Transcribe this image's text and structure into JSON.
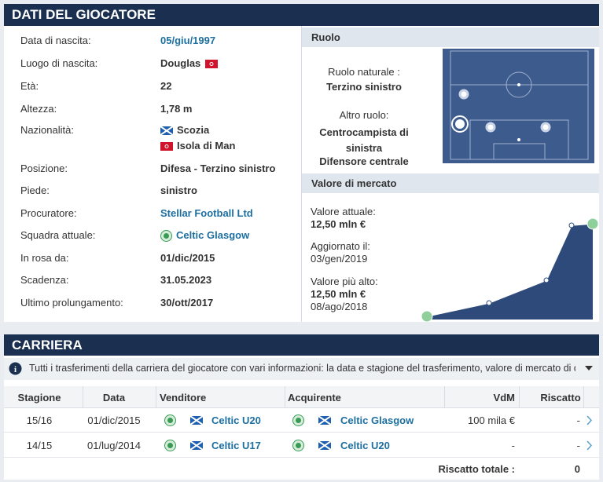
{
  "header": {
    "title": "DATI DEL GIOCATORE"
  },
  "profile": {
    "rows": [
      {
        "label": "Data di nascita:",
        "value": "05/giu/1997"
      },
      {
        "label": "Luogo di nascita:",
        "value": "Douglas"
      },
      {
        "label": "Età:",
        "value": "22"
      },
      {
        "label": "Altezza:",
        "value": "1,78 m"
      },
      {
        "label": "Nazionalità:",
        "value": [
          "Scozia",
          "Isola di Man"
        ]
      },
      {
        "label": "Posizione:",
        "value": "Difesa - Terzino sinistro"
      },
      {
        "label": "Piede:",
        "value": "sinistro"
      },
      {
        "label": "Procuratore:",
        "value": "Stellar Football Ltd"
      },
      {
        "label": "Squadra attuale:",
        "value": "Celtic Glasgow"
      },
      {
        "label": "In rosa da:",
        "value": "01/dic/2015"
      },
      {
        "label": "Scadenza:",
        "value": "31.05.2023"
      },
      {
        "label": "Ultimo prolungamento:",
        "value": "30/ott/2017"
      }
    ]
  },
  "role": {
    "title": "Ruolo",
    "natural_label": "Ruolo naturale :",
    "natural": "Terzino sinistro",
    "other_label": "Altro ruolo:",
    "other": [
      "Centrocampista di sinistra",
      "Difensore centrale"
    ]
  },
  "market": {
    "title": "Valore di mercato",
    "current_label": "Valore attuale:",
    "current": "12,50 mln €",
    "updated_label": "Aggiornato il:",
    "updated": "03/gen/2019",
    "highest_label": "Valore più alto:",
    "highest": "12,50 mln €",
    "highest_date": "08/ago/2018"
  },
  "career": {
    "title": "CARRIERA",
    "info": "Tutti i trasferimenti della carriera del giocatore con vari informazioni: la data e stagione del trasferimento, valore di mercato di quel momento...",
    "columns": [
      "Stagione",
      "Data",
      "Venditore",
      "Acquirente",
      "VdM",
      "Riscatto"
    ],
    "rows": [
      [
        "15/16",
        "01/dic/2015",
        "Celtic U20",
        "Celtic Glasgow",
        "100 mila €",
        "-"
      ],
      [
        "14/15",
        "01/lug/2014",
        "Celtic U17",
        "Celtic U20",
        "-",
        "-"
      ]
    ],
    "total_label": "Riscatto totale :",
    "total": "0"
  }
}
